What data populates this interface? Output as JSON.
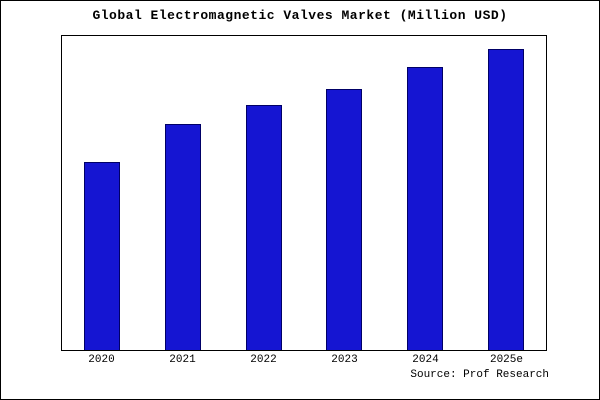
{
  "chart_data": {
    "type": "bar",
    "title": "Global Electromagnetic Valves Market (Million USD)",
    "categories": [
      "2020",
      "2021",
      "2022",
      "2023",
      "2024",
      "2025e"
    ],
    "values": [
      60,
      72,
      78,
      83,
      90,
      96
    ],
    "values_are_relative_estimates": true,
    "xlabel": "",
    "ylabel": "",
    "ylim": [
      0,
      100
    ],
    "grid": false,
    "legend": null,
    "colors": {
      "bar_fill": "#1515d2",
      "bar_edge": "#000066",
      "frame": "#000000",
      "background": "#ffffff"
    },
    "source": "Source: Prof Research"
  }
}
